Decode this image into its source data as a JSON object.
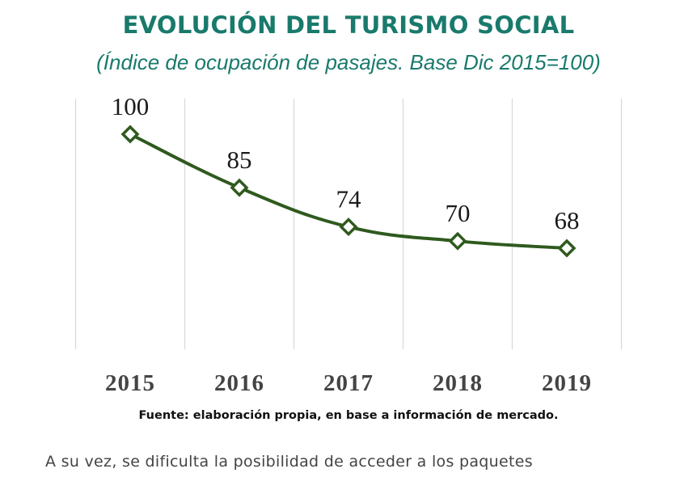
{
  "chart_data": {
    "type": "line",
    "title": "EVOLUCIÓN DEL TURISMO SOCIAL",
    "subtitle": "(Índice de ocupación de pasajes. Base Dic 2015=100)",
    "categories": [
      "2015",
      "2016",
      "2017",
      "2018",
      "2019"
    ],
    "series": [
      {
        "values": [
          100,
          85,
          74,
          70,
          68
        ],
        "data_labels": [
          "100",
          "85",
          "74",
          "70",
          "68"
        ],
        "color": "#2f5a1e",
        "marker": "diamond-open"
      }
    ],
    "ylim": [
      40,
      108
    ],
    "grid": "vertical",
    "legend": "none"
  },
  "source": "Fuente: elaboración propia, en base a información de mercado.",
  "body_text": "A su vez, se dificulta la posibilidad de acceder a los paquetes",
  "colors": {
    "title": "#197a6c",
    "line": "#2f5a1e",
    "grid": "#d9d9d9",
    "text": "#444444"
  }
}
